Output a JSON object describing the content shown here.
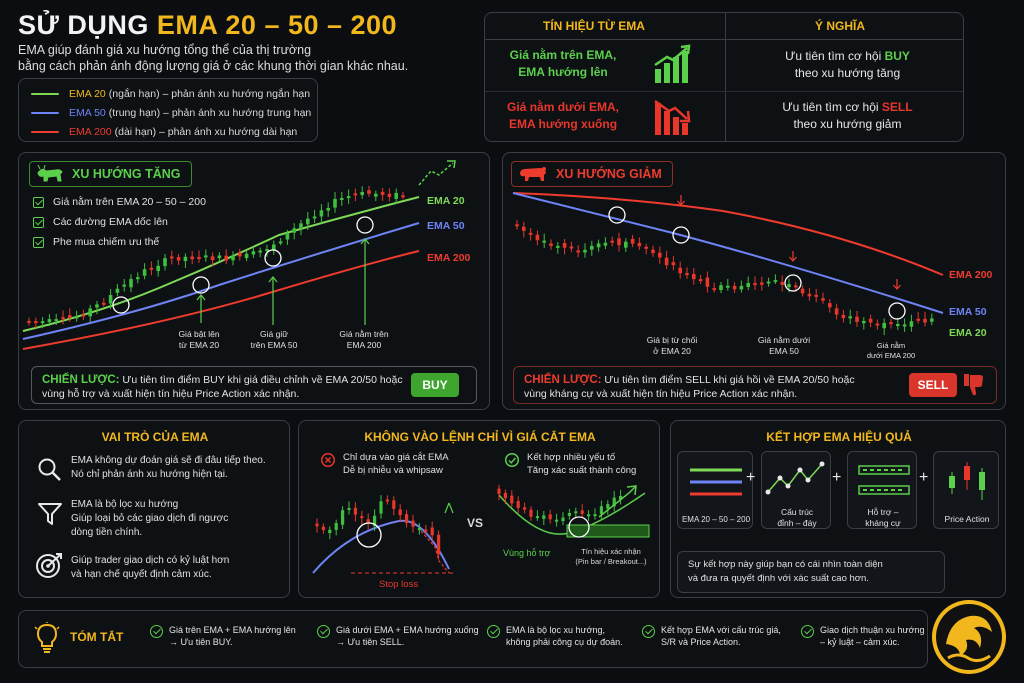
{
  "header": {
    "title_prefix": "SỬ DỤNG",
    "title_highlight": "EMA 20 – 50 – 200",
    "intro_line1": "EMA giúp đánh giá xu hướng tổng thể của thị trường",
    "intro_line2": "bằng cách phản ánh động lượng giá ở các khung thời gian khác nhau."
  },
  "legend": [
    {
      "name": "EMA 20",
      "desc": "(ngắn hạn) – phản ánh xu hướng ngắn hạn",
      "color": "#7ed957"
    },
    {
      "name": "EMA 50",
      "desc": "(trung hạn) – phản ánh xu hướng trung hạn",
      "color": "#6e83f5"
    },
    {
      "name": "EMA 200",
      "desc": "(dài hạn) – phản ánh xu hướng dài hạn",
      "color": "#ef3b2e"
    }
  ],
  "signals": {
    "col1_header": "TÍN HIỆU TỪ EMA",
    "col2_header": "Ý NGHĨA",
    "up_signal_l1": "Giá nằm trên EMA,",
    "up_signal_l2": "EMA hướng lên",
    "up_meaning_l1_pre": "Ưu tiên tìm cơ hội",
    "up_meaning_l1_key": "BUY",
    "up_meaning_l2": "theo xu hướng tăng",
    "down_signal_l1": "Giá nằm dưới EMA,",
    "down_signal_l2": "EMA hướng xuống",
    "down_meaning_l1_pre": "Ưu tiên tìm cơ hội",
    "down_meaning_l1_key": "SELL",
    "down_meaning_l2": "theo xu hướng giảm"
  },
  "uptrend": {
    "tag": "XU HƯỚNG TĂNG",
    "checks": [
      "Giá nằm trên EMA 20 – 50 – 200",
      "Các đường EMA dốc lên",
      "Phe mua chiếm ưu thế"
    ],
    "ema20": "EMA 20",
    "ema50": "EMA 50",
    "ema200": "EMA 200",
    "note1_l1": "Giá bật lên",
    "note1_l2": "từ EMA 20",
    "note2_l1": "Giá giữ",
    "note2_l2": "trên EMA 50",
    "note3_l1": "Giá nằm trên",
    "note3_l2": "EMA 200",
    "strategy_key": "CHIẾN LƯỢC:",
    "strategy_l1": "Ưu tiên tìm điểm BUY khi giá điều chỉnh về EMA 20/50 hoặc",
    "strategy_l2": "vùng hỗ trợ và xuất hiện tín hiệu Price Action xác nhận.",
    "button": "BUY"
  },
  "downtrend": {
    "tag": "XU HƯỚNG GIẢM",
    "ema200": "EMA 200",
    "ema50": "EMA 50",
    "ema20": "EMA 20",
    "note1_l1": "Giá bị từ chối",
    "note1_l2": "ở EMA 20",
    "note2_l1": "Giá nằm dưới",
    "note2_l2": "EMA 50",
    "note3_l1": "Giá nằm",
    "note3_l2": "dưới EMA 200",
    "strategy_key": "CHIẾN LƯỢC:",
    "strategy_l1": "Ưu tiên tìm điểm SELL khi giá hồi về EMA 20/50 hoặc",
    "strategy_l2": "vùng kháng cự và xuất hiện tín hiệu Price Action xác nhận.",
    "button": "SELL"
  },
  "role": {
    "title": "VAI TRÒ CỦA EMA",
    "items": [
      {
        "l1": "EMA không dự đoán giá sẽ đi đâu tiếp theo.",
        "l2": "Nó chỉ phản ánh xu hướng hiện tại."
      },
      {
        "l1": "EMA là bộ lọc xu hướng",
        "l2": "Giúp loại bỏ các giao dịch đi ngược",
        "l3": "dòng tiền chính."
      },
      {
        "l1": "Giúp trader giao dịch có kỷ luật hơn",
        "l2": "và hạn chế quyết định cảm xúc."
      }
    ]
  },
  "cross": {
    "title": "KHÔNG VÀO LỆNH CHỈ VÌ GIÁ CẮT EMA",
    "bad_l1": "Chỉ dựa vào giá cắt EMA",
    "bad_l2": "Dễ bị nhiễu và whipsaw",
    "good_l1": "Kết hợp nhiều yếu tố",
    "good_l2": "Tăng xác suất thành công",
    "vs": "VS",
    "stop_loss": "Stop loss",
    "support": "Vùng hỗ trợ",
    "confirm_l1": "Tín hiệu xác nhận",
    "confirm_l2": "(Pin bar / Breakout...)"
  },
  "combine": {
    "title": "KẾT HỢP EMA HIỆU QUẢ",
    "items": [
      {
        "l1": "EMA 20 – 50 – 200"
      },
      {
        "l1": "Cấu trúc",
        "l2": "đỉnh – đáy"
      },
      {
        "l1": "Hỗ trợ –",
        "l2": "kháng cự"
      },
      {
        "l1": "Price Action"
      }
    ],
    "plus": "+",
    "note_l1": "Sự kết hợp này giúp bạn có cái nhìn toàn diện",
    "note_l2": "và đưa ra quyết định với xác suất cao hơn."
  },
  "summary": {
    "title": "TÓM TẮT",
    "items": [
      {
        "l1": "Giá trên EMA + EMA hướng lên",
        "l2": "→ Ưu tiên BUY."
      },
      {
        "l1": "Giá dưới EMA + EMA hướng xuống",
        "l2": "→ Ưu tiên SELL."
      },
      {
        "l1": "EMA là bộ lọc xu hướng,",
        "l2": "không phải công cụ dự đoán."
      },
      {
        "l1": "Kết hợp EMA với cấu trúc giá,",
        "l2": "S/R và Price Action."
      },
      {
        "l1": "Giao dịch thuận xu hướng",
        "l2": "– kỷ luật – cảm xúc."
      }
    ]
  },
  "colors": {
    "gold": "#f2b71d",
    "green": "#5bd04a",
    "red": "#e8362b",
    "blue": "#6e83f5"
  }
}
